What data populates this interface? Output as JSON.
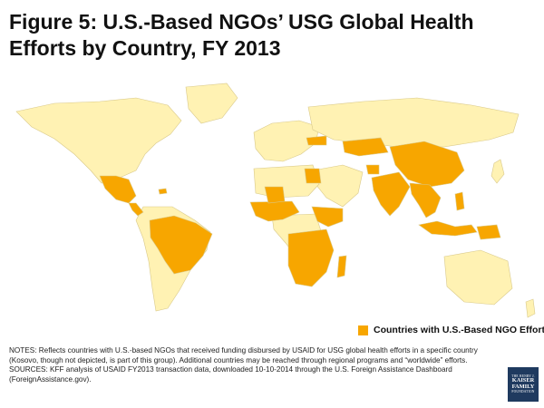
{
  "title": "Figure 5: U.S.-Based NGOs’ USG Global Health Efforts by Country, FY 2013",
  "legend": {
    "label": "Countries with U.S.-Based NGO Efforts",
    "color": "#F7A600"
  },
  "colors": {
    "highlight": "#F7A600",
    "other_land": "#FFF2B3",
    "ocean": "#FFFFFF",
    "border": "#D9C98A"
  },
  "notes": {
    "line1": "NOTES: Reflects countries with U.S.-based NGOs that received funding disbursed by USAID for USG global health efforts in a specific country (Kosovo, though not depicted, is part of this group). Additional countries may be reached through regional programs and “worldwide” efforts.",
    "line2": "SOURCES: KFF analysis of  USAID FY2013 transaction data, downloaded 10-10-2014 through the U.S. Foreign Assistance Dashboard (ForeignAssistance.gov)."
  },
  "logo": {
    "line1": "THE HENRY J.",
    "line2": "KAISER",
    "line3": "FAMILY",
    "line4": "FOUNDATION"
  },
  "map": {
    "highlighted_countries": [
      "Mexico",
      "Guatemala",
      "Honduras",
      "El Salvador",
      "Nicaragua",
      "Haiti",
      "Dominican Republic",
      "Brazil",
      "Peru",
      "Paraguay",
      "Mali",
      "Senegal",
      "Guinea",
      "Liberia",
      "Sierra Leone",
      "Cote d'Ivoire",
      "Ghana",
      "Nigeria",
      "Ethiopia",
      "South Sudan",
      "Kenya",
      "Uganda",
      "Tanzania",
      "Democratic Republic of the Congo",
      "Angola",
      "Zambia",
      "Malawi",
      "Mozambique",
      "Zimbabwe",
      "Namibia",
      "Botswana",
      "South Africa",
      "Madagascar",
      "Egypt",
      "Ukraine",
      "Kazakhstan",
      "Afghanistan",
      "India",
      "China",
      "Myanmar",
      "Thailand",
      "Cambodia",
      "Vietnam",
      "Philippines",
      "Indonesia",
      "Papua New Guinea"
    ]
  }
}
